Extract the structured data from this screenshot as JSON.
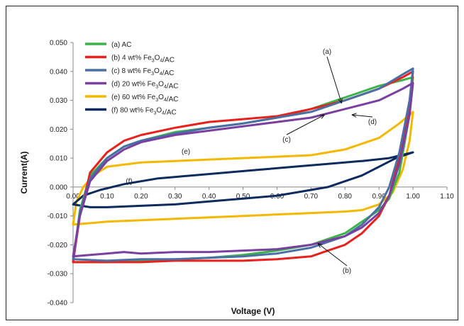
{
  "chart_data": {
    "type": "line",
    "xlabel": "Voltage (V)",
    "ylabel": "Current(A)",
    "xlim": [
      0.0,
      1.1
    ],
    "ylim": [
      -0.04,
      0.05
    ],
    "x_ticks": [
      "0.00",
      "0.10",
      "0.20",
      "0.30",
      "0.40",
      "0.50",
      "0.60",
      "0.70",
      "0.80",
      "0.90",
      "1.00",
      "1.10"
    ],
    "y_ticks": [
      "0.050",
      "0.040",
      "0.030",
      "0.020",
      "0.010",
      "0.000",
      "-0.010",
      "-0.020",
      "-0.030",
      "-0.040"
    ],
    "legend_position": "top-left",
    "grid": false,
    "series": [
      {
        "name": "(a)  AC",
        "color": "#3cb44b",
        "points": [
          [
            0.0,
            -0.026
          ],
          [
            0.02,
            -0.008
          ],
          [
            0.05,
            0.004
          ],
          [
            0.1,
            0.01
          ],
          [
            0.15,
            0.014
          ],
          [
            0.2,
            0.016
          ],
          [
            0.3,
            0.019
          ],
          [
            0.4,
            0.0205
          ],
          [
            0.5,
            0.022
          ],
          [
            0.6,
            0.024
          ],
          [
            0.7,
            0.027
          ],
          [
            0.8,
            0.031
          ],
          [
            0.9,
            0.035
          ],
          [
            0.97,
            0.037
          ],
          [
            1.0,
            0.038
          ],
          [
            0.99,
            0.025
          ],
          [
            0.96,
            0.005
          ],
          [
            0.93,
            -0.004
          ],
          [
            0.9,
            -0.008
          ],
          [
            0.85,
            -0.012
          ],
          [
            0.8,
            -0.016
          ],
          [
            0.7,
            -0.02
          ],
          [
            0.6,
            -0.022
          ],
          [
            0.5,
            -0.0235
          ],
          [
            0.4,
            -0.0245
          ],
          [
            0.3,
            -0.025
          ],
          [
            0.2,
            -0.0255
          ],
          [
            0.1,
            -0.026
          ],
          [
            0.0,
            -0.026
          ]
        ]
      },
      {
        "name": "(b) 4 wt% Fe3O4/AC",
        "color": "#e8211d",
        "points": [
          [
            0.0,
            -0.026
          ],
          [
            0.02,
            -0.01
          ],
          [
            0.05,
            0.005
          ],
          [
            0.1,
            0.012
          ],
          [
            0.15,
            0.016
          ],
          [
            0.2,
            0.018
          ],
          [
            0.3,
            0.0205
          ],
          [
            0.4,
            0.0225
          ],
          [
            0.5,
            0.0235
          ],
          [
            0.6,
            0.0245
          ],
          [
            0.7,
            0.027
          ],
          [
            0.8,
            0.03
          ],
          [
            0.9,
            0.034
          ],
          [
            0.97,
            0.038
          ],
          [
            1.0,
            0.04
          ],
          [
            0.99,
            0.028
          ],
          [
            0.96,
            0.01
          ],
          [
            0.93,
            -0.003
          ],
          [
            0.9,
            -0.01
          ],
          [
            0.85,
            -0.016
          ],
          [
            0.8,
            -0.02
          ],
          [
            0.75,
            -0.022
          ],
          [
            0.7,
            -0.024
          ],
          [
            0.6,
            -0.025
          ],
          [
            0.5,
            -0.0255
          ],
          [
            0.4,
            -0.0255
          ],
          [
            0.3,
            -0.0255
          ],
          [
            0.2,
            -0.026
          ],
          [
            0.1,
            -0.026
          ],
          [
            0.0,
            -0.026
          ]
        ]
      },
      {
        "name": "(c) 8 wt% Fe3O4/AC",
        "color": "#4a6fa5",
        "points": [
          [
            0.0,
            -0.025
          ],
          [
            0.02,
            -0.009
          ],
          [
            0.05,
            0.003
          ],
          [
            0.1,
            0.01
          ],
          [
            0.15,
            0.014
          ],
          [
            0.2,
            0.016
          ],
          [
            0.3,
            0.0185
          ],
          [
            0.4,
            0.0205
          ],
          [
            0.5,
            0.022
          ],
          [
            0.6,
            0.024
          ],
          [
            0.7,
            0.026
          ],
          [
            0.8,
            0.03
          ],
          [
            0.9,
            0.034
          ],
          [
            0.97,
            0.039
          ],
          [
            1.0,
            0.041
          ],
          [
            0.99,
            0.03
          ],
          [
            0.96,
            0.012
          ],
          [
            0.93,
            0.0
          ],
          [
            0.9,
            -0.007
          ],
          [
            0.85,
            -0.013
          ],
          [
            0.8,
            -0.017
          ],
          [
            0.7,
            -0.021
          ],
          [
            0.6,
            -0.023
          ],
          [
            0.5,
            -0.024
          ],
          [
            0.4,
            -0.0245
          ],
          [
            0.3,
            -0.025
          ],
          [
            0.2,
            -0.025
          ],
          [
            0.1,
            -0.0255
          ],
          [
            0.0,
            -0.025
          ]
        ]
      },
      {
        "name": "(d) 20 wt% Fe3O4/AC",
        "color": "#7a3fa0",
        "points": [
          [
            0.0,
            -0.024
          ],
          [
            0.02,
            -0.01
          ],
          [
            0.05,
            0.002
          ],
          [
            0.1,
            0.009
          ],
          [
            0.15,
            0.013
          ],
          [
            0.2,
            0.0155
          ],
          [
            0.3,
            0.018
          ],
          [
            0.4,
            0.0195
          ],
          [
            0.5,
            0.021
          ],
          [
            0.6,
            0.0225
          ],
          [
            0.7,
            0.024
          ],
          [
            0.8,
            0.027
          ],
          [
            0.9,
            0.03
          ],
          [
            0.97,
            0.034
          ],
          [
            1.0,
            0.036
          ],
          [
            0.99,
            0.025
          ],
          [
            0.96,
            0.008
          ],
          [
            0.93,
            -0.003
          ],
          [
            0.9,
            -0.009
          ],
          [
            0.85,
            -0.014
          ],
          [
            0.8,
            -0.017
          ],
          [
            0.7,
            -0.02
          ],
          [
            0.6,
            -0.0215
          ],
          [
            0.5,
            -0.022
          ],
          [
            0.4,
            -0.0225
          ],
          [
            0.3,
            -0.0225
          ],
          [
            0.2,
            -0.023
          ],
          [
            0.15,
            -0.0225
          ],
          [
            0.1,
            -0.023
          ],
          [
            0.0,
            -0.024
          ]
        ]
      },
      {
        "name": "(e) 60 wt% Fe3O4/AC",
        "color": "#f5b800",
        "points": [
          [
            0.0,
            -0.013
          ],
          [
            0.01,
            -0.005
          ],
          [
            0.03,
            0.0
          ],
          [
            0.06,
            0.004
          ],
          [
            0.1,
            0.007
          ],
          [
            0.2,
            0.0085
          ],
          [
            0.3,
            0.009
          ],
          [
            0.4,
            0.0095
          ],
          [
            0.5,
            0.01
          ],
          [
            0.6,
            0.0105
          ],
          [
            0.7,
            0.011
          ],
          [
            0.8,
            0.013
          ],
          [
            0.9,
            0.017
          ],
          [
            0.96,
            0.022
          ],
          [
            1.0,
            0.026
          ],
          [
            0.99,
            0.016
          ],
          [
            0.97,
            0.006
          ],
          [
            0.94,
            -0.002
          ],
          [
            0.9,
            -0.006
          ],
          [
            0.85,
            -0.008
          ],
          [
            0.8,
            -0.0085
          ],
          [
            0.7,
            -0.009
          ],
          [
            0.6,
            -0.0095
          ],
          [
            0.5,
            -0.01
          ],
          [
            0.4,
            -0.0105
          ],
          [
            0.3,
            -0.011
          ],
          [
            0.2,
            -0.0115
          ],
          [
            0.1,
            -0.012
          ],
          [
            0.0,
            -0.013
          ]
        ]
      },
      {
        "name": "(f) 80 wt% Fe3O4/AC",
        "color": "#0d2b5e",
        "points": [
          [
            0.0,
            -0.006
          ],
          [
            0.03,
            -0.003
          ],
          [
            0.08,
            -0.001
          ],
          [
            0.15,
            0.001
          ],
          [
            0.25,
            0.003
          ],
          [
            0.35,
            0.004
          ],
          [
            0.45,
            0.005
          ],
          [
            0.55,
            0.006
          ],
          [
            0.65,
            0.007
          ],
          [
            0.75,
            0.008
          ],
          [
            0.85,
            0.009
          ],
          [
            0.93,
            0.01
          ],
          [
            1.0,
            0.012
          ],
          [
            0.95,
            0.01
          ],
          [
            0.9,
            0.007
          ],
          [
            0.85,
            0.004
          ],
          [
            0.8,
            0.002
          ],
          [
            0.75,
            0.0
          ],
          [
            0.7,
            -0.001
          ],
          [
            0.6,
            -0.003
          ],
          [
            0.5,
            -0.004
          ],
          [
            0.4,
            -0.005
          ],
          [
            0.3,
            -0.006
          ],
          [
            0.2,
            -0.0065
          ],
          [
            0.1,
            -0.007
          ],
          [
            0.05,
            -0.007
          ],
          [
            0.0,
            -0.006
          ]
        ]
      }
    ],
    "annotations": [
      {
        "text": "(a)",
        "anchor": [
          0.79,
          0.029
        ]
      },
      {
        "text": "(b)",
        "anchor": [
          0.72,
          -0.0195
        ]
      },
      {
        "text": "(c)",
        "anchor": [
          0.74,
          0.025
        ]
      },
      {
        "text": "(d)",
        "anchor": [
          0.82,
          0.025
        ]
      },
      {
        "text": "(e)",
        "anchor": [
          0.3,
          0.01
        ]
      },
      {
        "text": "(f)",
        "anchor": [
          0.17,
          0.001
        ]
      }
    ]
  }
}
